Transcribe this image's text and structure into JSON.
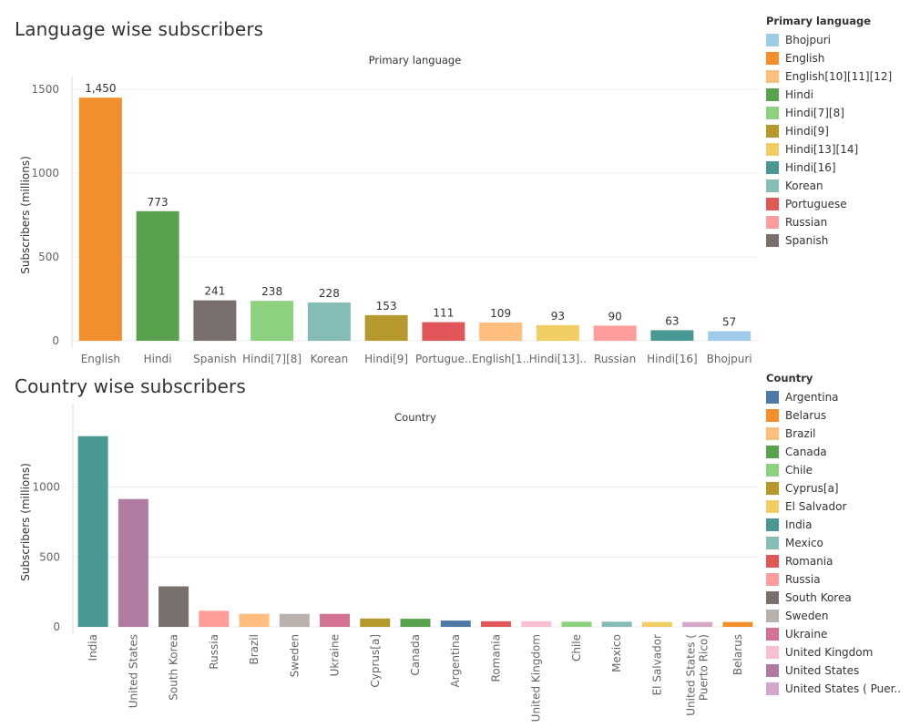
{
  "language_section": {
    "title": "Language wise subscribers"
  },
  "country_section": {
    "title": "Country wise subscribers"
  },
  "colors": {
    "Bhojpuri": "#9fcbe8",
    "English": "#f28e2b",
    "English[10][11][12]": "#ffbe7d",
    "Hindi": "#59a14f",
    "Hindi[7][8]": "#8cd17d",
    "Hindi[9]": "#b6992d",
    "Hindi[13][14]": "#f1ce63",
    "Hindi[16]": "#499894",
    "Korean": "#86bcb6",
    "Portuguese": "#e15759",
    "Russian": "#ff9d9a",
    "Spanish": "#79706e",
    "Argentina": "#4e79a7",
    "Belarus": "#f28e2b",
    "Brazil": "#ffbe7d",
    "Canada": "#59a14f",
    "Chile": "#8cd17d",
    "Cyprus[a]": "#b6992d",
    "El Salvador": "#f1ce63",
    "India": "#499894",
    "Mexico": "#86bcb6",
    "Romania": "#e15759",
    "Russia": "#ff9d9a",
    "South Korea": "#79706e",
    "Sweden": "#bab0ac",
    "Ukraine": "#d37295",
    "United Kingdom": "#fabfd2",
    "United States": "#b07aa1",
    "United States ( Puerto Rico)": "#d4a6c8"
  },
  "chart_data": [
    {
      "type": "bar",
      "header": "Primary language",
      "ylabel": "Subscribers (millions)",
      "ylim": [
        0,
        1500
      ],
      "yticks": [
        "0",
        "500",
        "1000",
        "1500"
      ],
      "categories": [
        "English",
        "Hindi",
        "Spanish",
        "Hindi[7][8]",
        "Korean",
        "Hindi[9]",
        "Portuguese",
        "English[10][11][12]",
        "Hindi[13][14]",
        "Russian",
        "Hindi[16]",
        "Bhojpuri"
      ],
      "tick_labels": [
        "English",
        "Hindi",
        "Spanish",
        "Hindi[7][8]",
        "Korean",
        "Hindi[9]",
        "Portugue..",
        "English[1..",
        "Hindi[13]..",
        "Russian",
        "Hindi[16]",
        "Bhojpuri"
      ],
      "values": [
        1450,
        773,
        241,
        238,
        228,
        153,
        111,
        109,
        93,
        90,
        63,
        57
      ],
      "data_labels": [
        "1,450",
        "773",
        "241",
        "238",
        "228",
        "153",
        "111",
        "109",
        "93",
        "90",
        "63",
        "57"
      ],
      "legend": {
        "title": "Primary language",
        "entries": [
          "Bhojpuri",
          "English",
          "English[10][11][12]",
          "Hindi",
          "Hindi[7][8]",
          "Hindi[9]",
          "Hindi[13][14]",
          "Hindi[16]",
          "Korean",
          "Portuguese",
          "Russian",
          "Spanish"
        ]
      },
      "legend_placement": "right"
    },
    {
      "type": "bar",
      "header": "Country",
      "ylabel": "Subscribers (millions)",
      "ylim": [
        0,
        1500
      ],
      "yticks": [
        "0",
        "500",
        "1000"
      ],
      "categories": [
        "India",
        "United States",
        "South Korea",
        "Russia",
        "Brazil",
        "Sweden",
        "Ukraine",
        "Cyprus[a]",
        "Canada",
        "Argentina",
        "Romania",
        "United Kingdom",
        "Chile",
        "Mexico",
        "El Salvador",
        "United States ( Puerto Rico)",
        "Belarus"
      ],
      "tick_labels": [
        [
          "India"
        ],
        [
          "United States"
        ],
        [
          "South Korea"
        ],
        [
          "Russia"
        ],
        [
          "Brazil"
        ],
        [
          "Sweden"
        ],
        [
          "Ukraine"
        ],
        [
          "Cyprus[a]"
        ],
        [
          "Canada"
        ],
        [
          "Argentina"
        ],
        [
          "Romania"
        ],
        [
          "United Kingdom"
        ],
        [
          "Chile"
        ],
        [
          "Mexico"
        ],
        [
          "El Salvador"
        ],
        [
          "United States (",
          "Puerto Rico)"
        ],
        [
          "Belarus"
        ]
      ],
      "values": [
        1365,
        915,
        290,
        115,
        93,
        93,
        93,
        60,
        58,
        45,
        40,
        40,
        37,
        37,
        35,
        35,
        35
      ],
      "legend": {
        "title": "Country",
        "entries": [
          "Argentina",
          "Belarus",
          "Brazil",
          "Canada",
          "Chile",
          "Cyprus[a]",
          "El Salvador",
          "India",
          "Mexico",
          "Romania",
          "Russia",
          "South Korea",
          "Sweden",
          "Ukraine",
          "United Kingdom",
          "United States",
          "United States ( Puer.."
        ]
      },
      "legend_keys": [
        "Argentina",
        "Belarus",
        "Brazil",
        "Canada",
        "Chile",
        "Cyprus[a]",
        "El Salvador",
        "India",
        "Mexico",
        "Romania",
        "Russia",
        "South Korea",
        "Sweden",
        "Ukraine",
        "United Kingdom",
        "United States",
        "United States ( Puerto Rico)"
      ],
      "legend_placement": "right"
    }
  ]
}
